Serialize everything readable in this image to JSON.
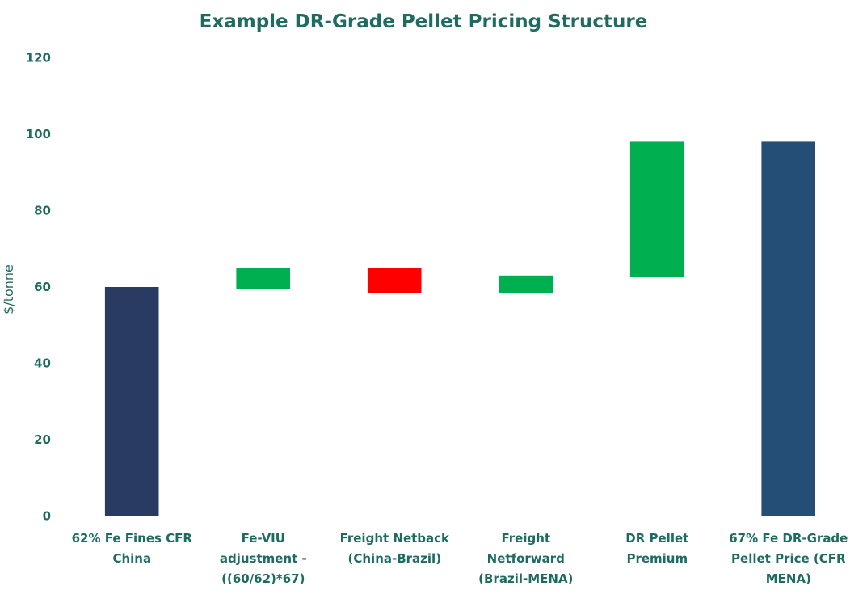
{
  "chart_data": {
    "type": "bar",
    "subtype": "waterfall",
    "title": "Example DR-Grade Pellet Pricing Structure",
    "xlabel": "",
    "ylabel": "$/tonne",
    "ylim": [
      0,
      120
    ],
    "yticks": [
      0,
      20,
      40,
      60,
      80,
      100,
      120
    ],
    "grid": false,
    "legend": "none",
    "categories": [
      [
        "62% Fe Fines CFR",
        "China"
      ],
      [
        "Fe-VIU",
        "adjustment -",
        "((60/62)*67)"
      ],
      [
        "Freight Netback",
        "(China-Brazil)"
      ],
      [
        "Freight",
        "Netforward",
        "(Brazil-MENA)"
      ],
      [
        "DR Pellet",
        "Premium"
      ],
      [
        "67% Fe DR-Grade",
        "Pellet Price (CFR",
        "MENA)"
      ]
    ],
    "bars": [
      {
        "low": 0,
        "high": 60,
        "color": "#293b61"
      },
      {
        "low": 59.5,
        "high": 65,
        "color": "#00b050"
      },
      {
        "low": 58.5,
        "high": 65,
        "color": "#ff0000"
      },
      {
        "low": 58.5,
        "high": 63,
        "color": "#00b050"
      },
      {
        "low": 62.5,
        "high": 98,
        "color": "#00b050"
      },
      {
        "low": 0,
        "high": 98,
        "color": "#254e77"
      }
    ]
  }
}
